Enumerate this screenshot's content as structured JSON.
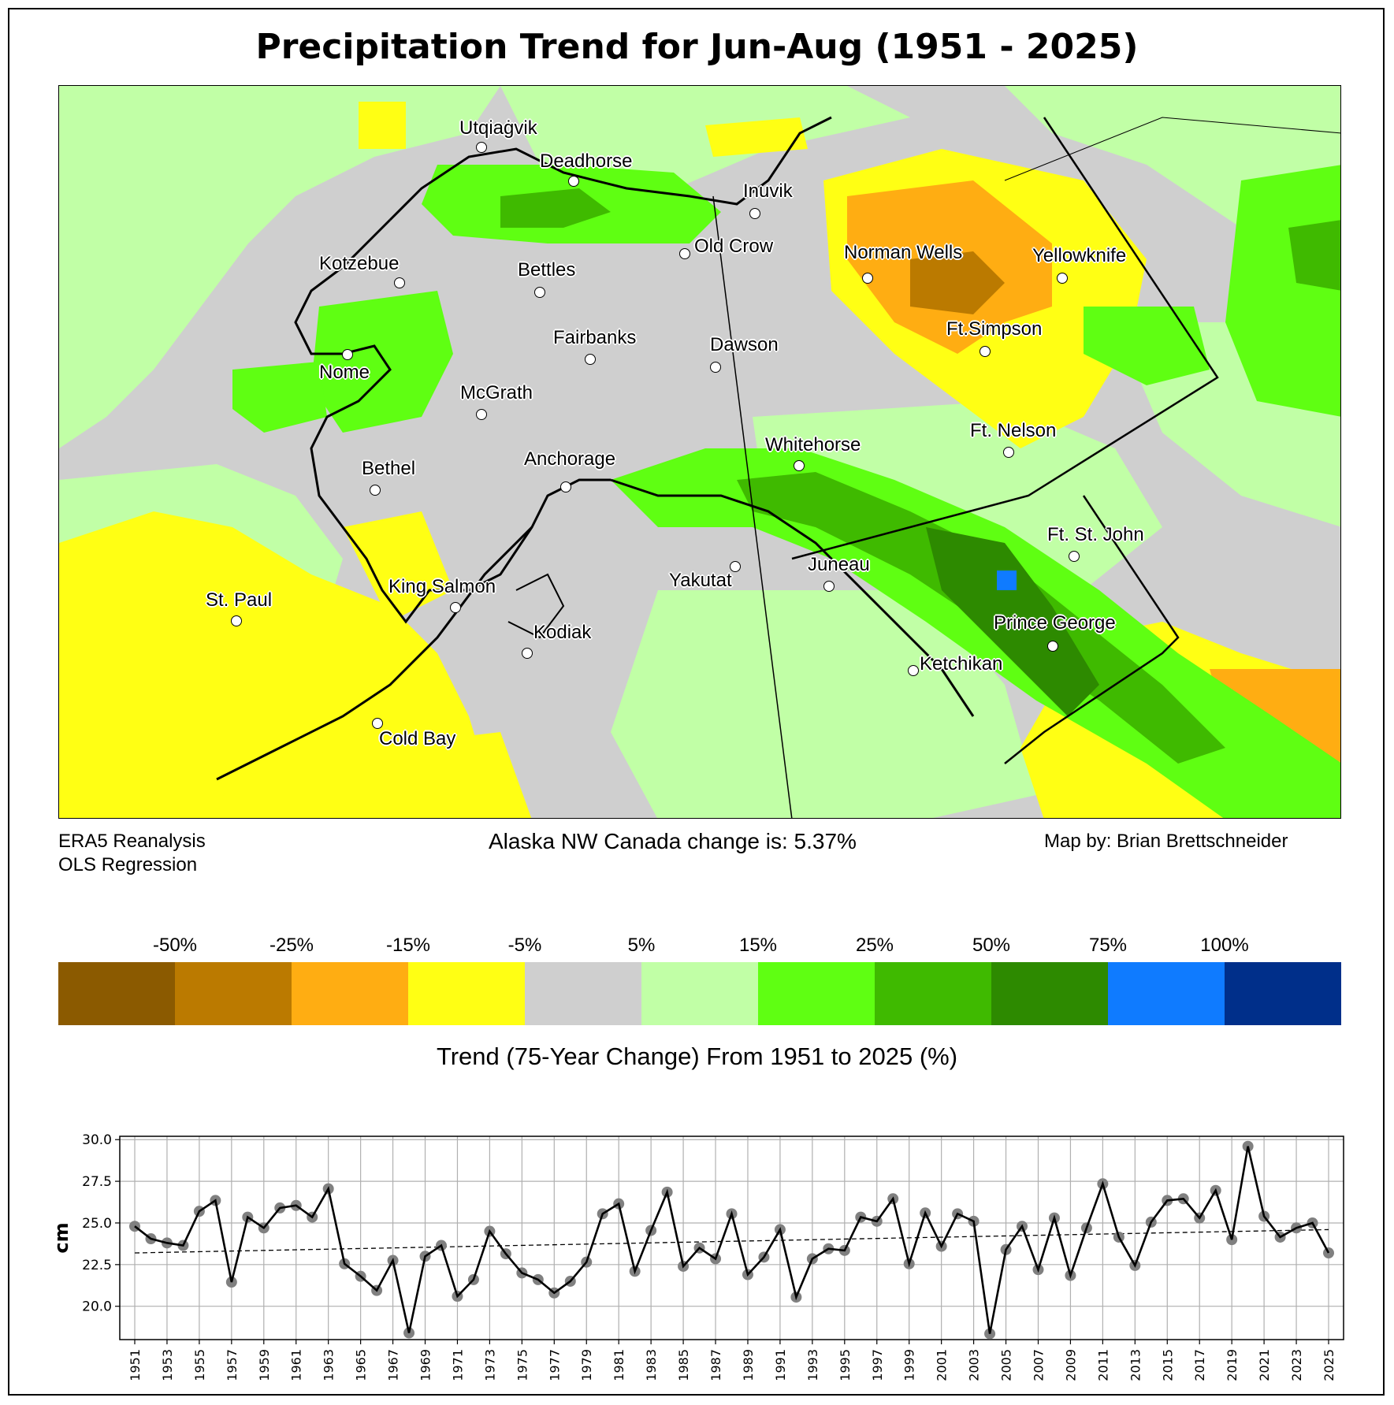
{
  "title": "Precipitation Trend for Jun-Aug (1951 - 2025)",
  "notes": {
    "source_line1": "ERA5 Reanalysis",
    "source_line2": "OLS Regression",
    "change": "Alaska NW Canada change is: 5.37%",
    "credit": "Map by: Brian Brettschneider"
  },
  "cities": [
    {
      "name": "Utqiaġvik"
    },
    {
      "name": "Deadhorse"
    },
    {
      "name": "Inuvik"
    },
    {
      "name": "Old Crow"
    },
    {
      "name": "Norman Wells"
    },
    {
      "name": "Yellowknife"
    },
    {
      "name": "Kotzebue"
    },
    {
      "name": "Bettles"
    },
    {
      "name": "Fairbanks"
    },
    {
      "name": "Dawson"
    },
    {
      "name": "Ft.Simpson"
    },
    {
      "name": "Nome"
    },
    {
      "name": "McGrath"
    },
    {
      "name": "Ft. Nelson"
    },
    {
      "name": "Whitehorse"
    },
    {
      "name": "Anchorage"
    },
    {
      "name": "Bethel"
    },
    {
      "name": "Ft. St. John"
    },
    {
      "name": "Juneau"
    },
    {
      "name": "Yakutat"
    },
    {
      "name": "King Salmon"
    },
    {
      "name": "St. Paul"
    },
    {
      "name": "Kodiak"
    },
    {
      "name": "Prince George"
    },
    {
      "name": "Ketchikan"
    },
    {
      "name": "Cold Bay"
    }
  ],
  "colorbar": {
    "colors": [
      "#8b5a00",
      "#bb7a00",
      "#ffad12",
      "#ffff14",
      "#cfcfcf",
      "#c1ffa6",
      "#5fff12",
      "#3fba00",
      "#2d8a00",
      "#0f7bff",
      "#002f8a"
    ],
    "ticks": [
      "-50%",
      "-25%",
      "-15%",
      "-5%",
      "5%",
      "15%",
      "25%",
      "50%",
      "75%",
      "100%"
    ],
    "label": "Trend (75-Year Change) From 1951 to 2025 (%)"
  },
  "chart_data": {
    "type": "line",
    "title": "",
    "xlabel": "",
    "ylabel": "cm",
    "ylim": [
      18.0,
      30.2
    ],
    "yticks": [
      "30.0",
      "27.5",
      "25.0",
      "22.5",
      "20.0"
    ],
    "ytick_values": [
      30.0,
      27.5,
      25.0,
      22.5,
      20.0
    ],
    "grid": true,
    "x": [
      1951,
      1952,
      1953,
      1954,
      1955,
      1956,
      1957,
      1958,
      1959,
      1960,
      1961,
      1962,
      1963,
      1964,
      1965,
      1966,
      1967,
      1968,
      1969,
      1970,
      1971,
      1972,
      1973,
      1974,
      1975,
      1976,
      1977,
      1978,
      1979,
      1980,
      1981,
      1982,
      1983,
      1984,
      1985,
      1986,
      1987,
      1988,
      1989,
      1990,
      1991,
      1992,
      1993,
      1994,
      1995,
      1996,
      1997,
      1998,
      1999,
      2000,
      2001,
      2002,
      2003,
      2004,
      2005,
      2006,
      2007,
      2008,
      2009,
      2010,
      2011,
      2012,
      2013,
      2014,
      2015,
      2016,
      2017,
      2018,
      2019,
      2020,
      2021,
      2022,
      2023,
      2024,
      2025
    ],
    "xtick_labels": [
      "1951",
      "1953",
      "1955",
      "1957",
      "1959",
      "1961",
      "1963",
      "1965",
      "1967",
      "1969",
      "1971",
      "1973",
      "1975",
      "1977",
      "1979",
      "1981",
      "1983",
      "1985",
      "1987",
      "1989",
      "1991",
      "1993",
      "1995",
      "1997",
      "1999",
      "2001",
      "2003",
      "2005",
      "2007",
      "2009",
      "2011",
      "2013",
      "2015",
      "2017",
      "2019",
      "2021",
      "2023",
      "2025"
    ],
    "series": [
      {
        "name": "Jun-Aug precipitation",
        "values": [
          24.8,
          24.05,
          23.8,
          23.65,
          25.7,
          26.35,
          21.45,
          25.35,
          24.7,
          25.9,
          26.05,
          25.35,
          27.05,
          22.55,
          21.8,
          20.95,
          22.75,
          18.4,
          23.0,
          23.65,
          20.6,
          21.6,
          24.5,
          23.15,
          22.0,
          21.6,
          20.8,
          21.5,
          22.65,
          25.55,
          26.15,
          22.1,
          24.55,
          26.85,
          22.4,
          23.5,
          22.85,
          25.55,
          21.9,
          22.95,
          24.6,
          20.55,
          22.85,
          23.45,
          23.35,
          25.35,
          25.1,
          26.45,
          22.55,
          25.6,
          23.6,
          25.55,
          25.1,
          18.35,
          23.4,
          24.8,
          22.2,
          25.3,
          21.85,
          24.7,
          27.35,
          24.15,
          22.45,
          25.05,
          26.35,
          26.45,
          25.3,
          26.95,
          24.0,
          29.6,
          25.4,
          24.15,
          24.7,
          25.0,
          23.2
        ]
      },
      {
        "name": "OLS trend",
        "style": "dashed",
        "values_endpoints": [
          23.2,
          24.6
        ]
      }
    ]
  }
}
